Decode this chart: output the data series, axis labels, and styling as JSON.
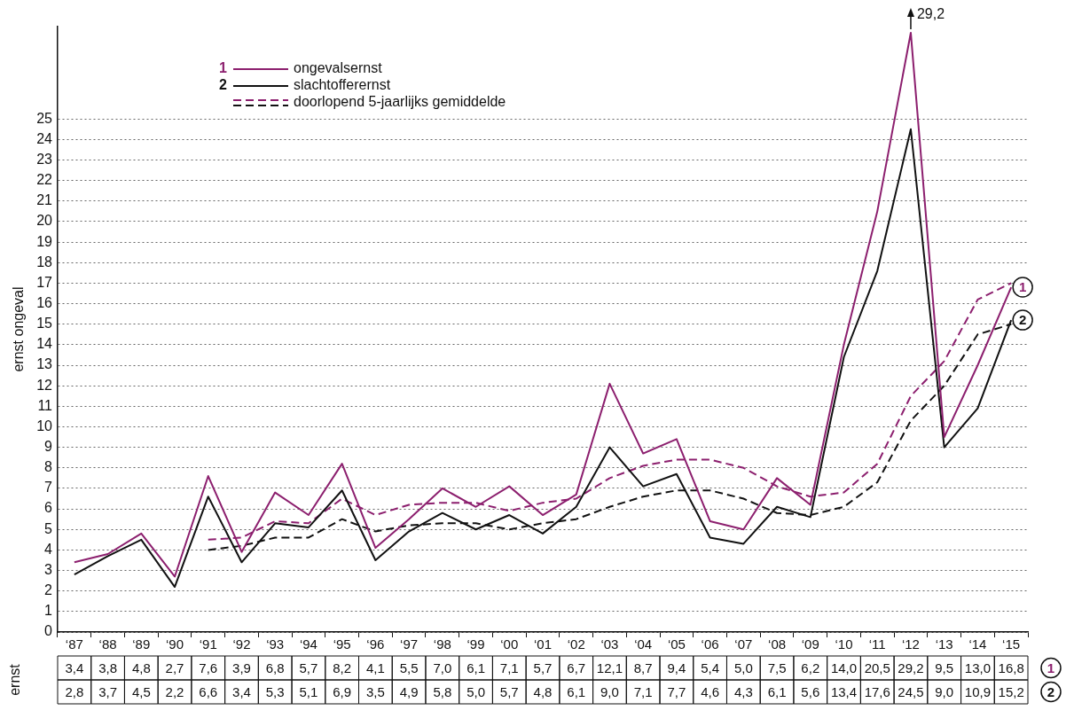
{
  "chart_data": {
    "type": "line",
    "ylabel": "ernst ongeval",
    "categories": [
      "‘87",
      "‘88",
      "‘89",
      "‘90",
      "‘91",
      "‘92",
      "‘93",
      "‘94",
      "‘95",
      "‘96",
      "‘97",
      "‘98",
      "‘99",
      "‘00",
      "‘01",
      "‘02",
      "‘03",
      "‘04",
      "‘05",
      "‘06",
      "‘07",
      "‘08",
      "‘09",
      "‘10",
      "‘11",
      "‘12",
      "‘13",
      "‘14",
      "‘15"
    ],
    "series": [
      {
        "name": "ongevalsernst",
        "color": "#8c1f6e",
        "line_style": "solid",
        "values": [
          3.4,
          3.8,
          4.8,
          2.7,
          7.6,
          3.9,
          6.8,
          5.7,
          8.2,
          4.1,
          5.5,
          7.0,
          6.1,
          7.1,
          5.7,
          6.7,
          12.1,
          8.7,
          9.4,
          5.4,
          5.0,
          7.5,
          6.2,
          14.0,
          20.5,
          29.2,
          9.5,
          13.0,
          16.8
        ],
        "value_labels": [
          "3,4",
          "3,8",
          "4,8",
          "2,7",
          "7,6",
          "3,9",
          "6,8",
          "5,7",
          "8,2",
          "4,1",
          "5,5",
          "7,0",
          "6,1",
          "7,1",
          "5,7",
          "6,7",
          "12,1",
          "8,7",
          "9,4",
          "5,4",
          "5,0",
          "7,5",
          "6,2",
          "14,0",
          "20,5",
          "29,2",
          "9,5",
          "13,0",
          "16,8"
        ]
      },
      {
        "name": "slachtofferernst",
        "color": "#111111",
        "line_style": "solid",
        "values": [
          2.8,
          3.7,
          4.5,
          2.2,
          6.6,
          3.4,
          5.3,
          5.1,
          6.9,
          3.5,
          4.9,
          5.8,
          5.0,
          5.7,
          4.8,
          6.1,
          9.0,
          7.1,
          7.7,
          4.6,
          4.3,
          6.1,
          5.6,
          13.4,
          17.6,
          24.5,
          9.0,
          10.9,
          15.2
        ],
        "value_labels": [
          "2,8",
          "3,7",
          "4,5",
          "2,2",
          "6,6",
          "3,4",
          "5,3",
          "5,1",
          "6,9",
          "3,5",
          "4,9",
          "5,8",
          "5,0",
          "5,7",
          "4,8",
          "6,1",
          "9,0",
          "7,1",
          "7,7",
          "4,6",
          "4,3",
          "6,1",
          "5,6",
          "13,4",
          "17,6",
          "24,5",
          "9,0",
          "10,9",
          "15,2"
        ]
      },
      {
        "name": "doorlopend 5-jaarlijks gemiddelde",
        "color": "#8c1f6e",
        "line_style": "dashed",
        "values": [
          null,
          null,
          null,
          null,
          4.5,
          4.6,
          5.4,
          5.3,
          6.5,
          5.7,
          6.2,
          6.3,
          6.3,
          5.9,
          6.3,
          6.5,
          7.5,
          8.1,
          8.4,
          8.4,
          8.0,
          7.1,
          6.6,
          6.8,
          8.2,
          11.5,
          13.2,
          16.2,
          17.0
        ]
      },
      {
        "color": "#111111",
        "line_style": "dashed",
        "values": [
          null,
          null,
          null,
          null,
          4.0,
          4.2,
          4.6,
          4.6,
          5.5,
          4.9,
          5.2,
          5.3,
          5.3,
          5.0,
          5.3,
          5.5,
          6.1,
          6.6,
          6.9,
          6.9,
          6.5,
          5.8,
          5.7,
          6.1,
          7.3,
          10.3,
          12.0,
          14.5,
          15.0
        ]
      }
    ],
    "ylim": [
      0,
      29.5
    ],
    "yticks": [
      0,
      1,
      2,
      3,
      4,
      5,
      6,
      7,
      8,
      9,
      10,
      11,
      12,
      13,
      14,
      15,
      16,
      17,
      18,
      19,
      20,
      21,
      22,
      23,
      24,
      25
    ],
    "grid": "y",
    "legend": "top left",
    "marker": "none",
    "annotations": [
      {
        "text": "1",
        "x": "‘15",
        "y": 16.8
      },
      {
        "text": "2",
        "x": "‘15",
        "y": 15.2
      },
      {
        "text": "29,2",
        "x": "‘12",
        "y": 29.2
      },
      "ernst"
    ]
  }
}
